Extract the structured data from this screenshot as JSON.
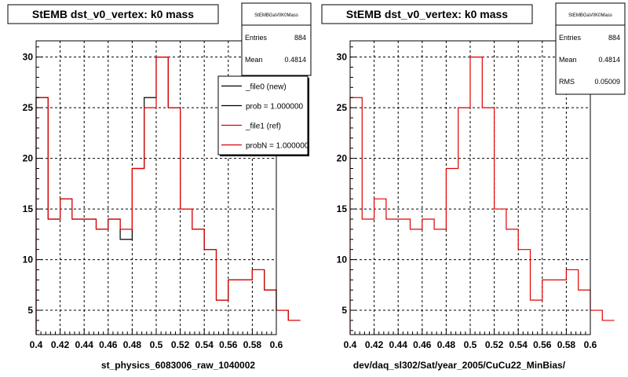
{
  "chart_data": [
    {
      "type": "line",
      "title": "StEMB dst_v0_vertex: k0 mass",
      "caption": "st_physics_6083006_raw_1040002",
      "xlim": [
        0.4,
        0.6
      ],
      "ylim": [
        2.6,
        31.6
      ],
      "x_ticks": [
        "0.4",
        "0.42",
        "0.44",
        "0.46",
        "0.48",
        "0.5",
        "0.52",
        "0.54",
        "0.56",
        "0.58",
        "0.6"
      ],
      "y_ticks": [
        "5",
        "10",
        "15",
        "20",
        "25",
        "30"
      ],
      "grid": true,
      "bin_width": 0.01,
      "bin_edges_start": 0.4,
      "stats": {
        "header": "StEMBGaV0K0Mass",
        "rows": [
          {
            "label": "Entries",
            "value": "884"
          },
          {
            "label": "Mean",
            "value": "0.4814"
          }
        ]
      },
      "legend": {
        "placement": "top-right",
        "entries": [
          {
            "label": "_file0 (new)",
            "color": "#000000"
          },
          {
            "label": "prob = 1.000000",
            "color": "#000000"
          },
          {
            "label": "_file1 (ref)",
            "color": "#e00000"
          },
          {
            "label": "probN = 1.000000",
            "color": "#e00000"
          }
        ]
      },
      "series": [
        {
          "name": "_file0 (new)",
          "color": "#000000",
          "values": [
            26,
            14,
            16,
            14,
            14,
            13,
            14,
            12,
            19,
            26,
            30,
            25,
            15,
            13,
            11,
            6,
            8,
            8,
            9,
            7,
            5,
            4
          ]
        },
        {
          "name": "_file1 (ref)",
          "color": "#e00000",
          "values": [
            26,
            14,
            16,
            14,
            14,
            13,
            14,
            13,
            19,
            25,
            30,
            25,
            15,
            13,
            11,
            6,
            8,
            8,
            9,
            7,
            5,
            4
          ]
        }
      ]
    },
    {
      "type": "line",
      "title": "StEMB dst_v0_vertex: k0 mass",
      "caption": "dev/daq_sl302/Sat/year_2005/CuCu22_MinBias/",
      "xlim": [
        0.4,
        0.6
      ],
      "ylim": [
        2.6,
        31.6
      ],
      "x_ticks": [
        "0.4",
        "0.42",
        "0.44",
        "0.46",
        "0.48",
        "0.5",
        "0.52",
        "0.54",
        "0.56",
        "0.58",
        "0.6"
      ],
      "y_ticks": [
        "5",
        "10",
        "15",
        "20",
        "25",
        "30"
      ],
      "grid": true,
      "bin_width": 0.01,
      "bin_edges_start": 0.4,
      "stats": {
        "header": "StEMBGaV0K0Mass",
        "rows": [
          {
            "label": "Entries",
            "value": "884"
          },
          {
            "label": "Mean",
            "value": "0.4814"
          },
          {
            "label": "RMS",
            "value": "0.05009"
          }
        ]
      },
      "series": [
        {
          "name": "",
          "color": "#e00000",
          "values": [
            26,
            14,
            16,
            14,
            14,
            13,
            14,
            13,
            19,
            25,
            30,
            25,
            15,
            13,
            11,
            6,
            8,
            8,
            9,
            7,
            5,
            4
          ]
        }
      ]
    }
  ]
}
